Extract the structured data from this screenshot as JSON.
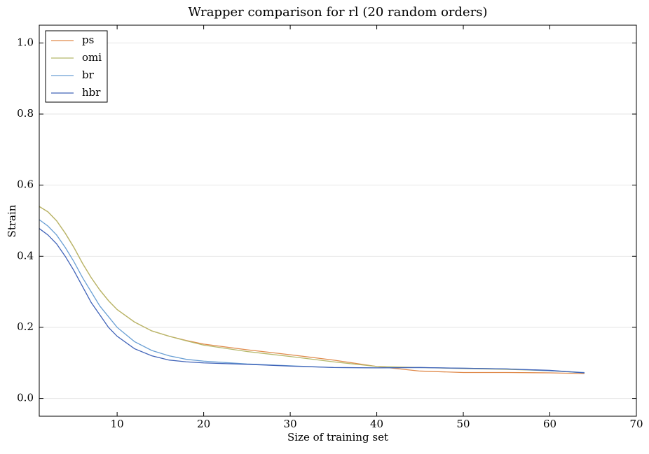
{
  "chart_data": {
    "type": "line",
    "title": "Wrapper comparison for rl (20 random orders)",
    "xlabel": "Size of training set",
    "ylabel": "Strain",
    "x": [
      1,
      2,
      3,
      4,
      5,
      6,
      7,
      8,
      9,
      10,
      12,
      14,
      16,
      18,
      20,
      25,
      30,
      35,
      40,
      45,
      50,
      55,
      60,
      64
    ],
    "series": [
      {
        "name": "ps",
        "color": "#e08a4b",
        "values": [
          0.54,
          0.525,
          0.5,
          0.465,
          0.425,
          0.38,
          0.34,
          0.305,
          0.275,
          0.25,
          0.215,
          0.19,
          0.175,
          0.163,
          0.153,
          0.137,
          0.123,
          0.108,
          0.09,
          0.077,
          0.073,
          0.073,
          0.072,
          0.07
        ]
      },
      {
        "name": "omi",
        "color": "#b5b86a",
        "values": [
          0.54,
          0.525,
          0.5,
          0.465,
          0.425,
          0.38,
          0.34,
          0.305,
          0.275,
          0.25,
          0.215,
          0.19,
          0.175,
          0.162,
          0.15,
          0.132,
          0.118,
          0.103,
          0.09,
          0.087,
          0.084,
          0.082,
          0.078,
          0.072
        ]
      },
      {
        "name": "br",
        "color": "#6a9fd4",
        "values": [
          0.503,
          0.485,
          0.46,
          0.425,
          0.385,
          0.34,
          0.3,
          0.26,
          0.23,
          0.2,
          0.16,
          0.135,
          0.12,
          0.11,
          0.105,
          0.097,
          0.092,
          0.087,
          0.086,
          0.087,
          0.085,
          0.083,
          0.078,
          0.073
        ]
      },
      {
        "name": "hbr",
        "color": "#4063b8",
        "values": [
          0.478,
          0.46,
          0.435,
          0.4,
          0.36,
          0.315,
          0.27,
          0.235,
          0.2,
          0.175,
          0.14,
          0.12,
          0.108,
          0.103,
          0.1,
          0.096,
          0.091,
          0.087,
          0.086,
          0.087,
          0.085,
          0.083,
          0.079,
          0.072
        ]
      }
    ],
    "xlim": [
      1,
      70
    ],
    "xticks": [
      10,
      20,
      30,
      40,
      50,
      60,
      70
    ],
    "ylim": [
      -0.05,
      1.05
    ],
    "yticks": [
      {
        "value": 0,
        "label": "0.0"
      },
      0.2,
      0.4,
      0.6,
      0.8,
      {
        "value": 1,
        "label": "1.0"
      }
    ],
    "grid": true,
    "legend": "upper left"
  }
}
